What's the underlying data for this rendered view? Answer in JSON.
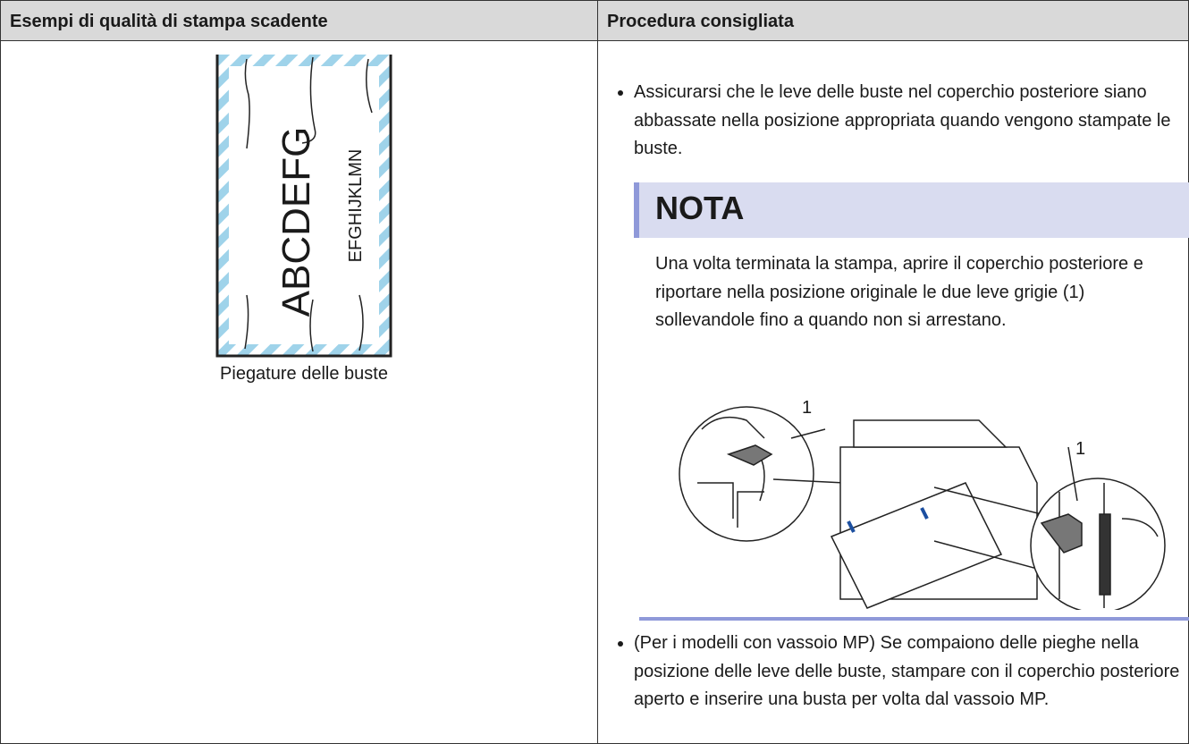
{
  "table": {
    "headers": [
      "Esempi di qualità di stampa scadente",
      "Procedura consigliata"
    ],
    "rows": [
      [
        {
          "illustration": {
            "large_text": "ABCDEFG",
            "small_text": "EFGHIJKLMN"
          },
          "caption": "Piegature delle buste"
        },
        {
          "bullets": [
            "Assicurarsi che le leve delle buste nel coperchio posteriore siano abbassate nella posizione appropriata quando vengono stampate le buste.",
            "(Per i modelli con vassoio MP) Se compaiono delle pieghe nella posizione delle leve delle buste, stampare con il coperchio posteriore aperto e inserire una busta per volta dal vassoio MP."
          ],
          "note": {
            "title": "NOTA",
            "text": "Una volta terminata la stampa, aprire il coperchio posteriore e riportare nella posizione originale le due leve grigie (1) sollevandole fino a quando non si arrestano.",
            "figure_labels": [
              "1",
              "1"
            ]
          }
        }
      ]
    ]
  }
}
